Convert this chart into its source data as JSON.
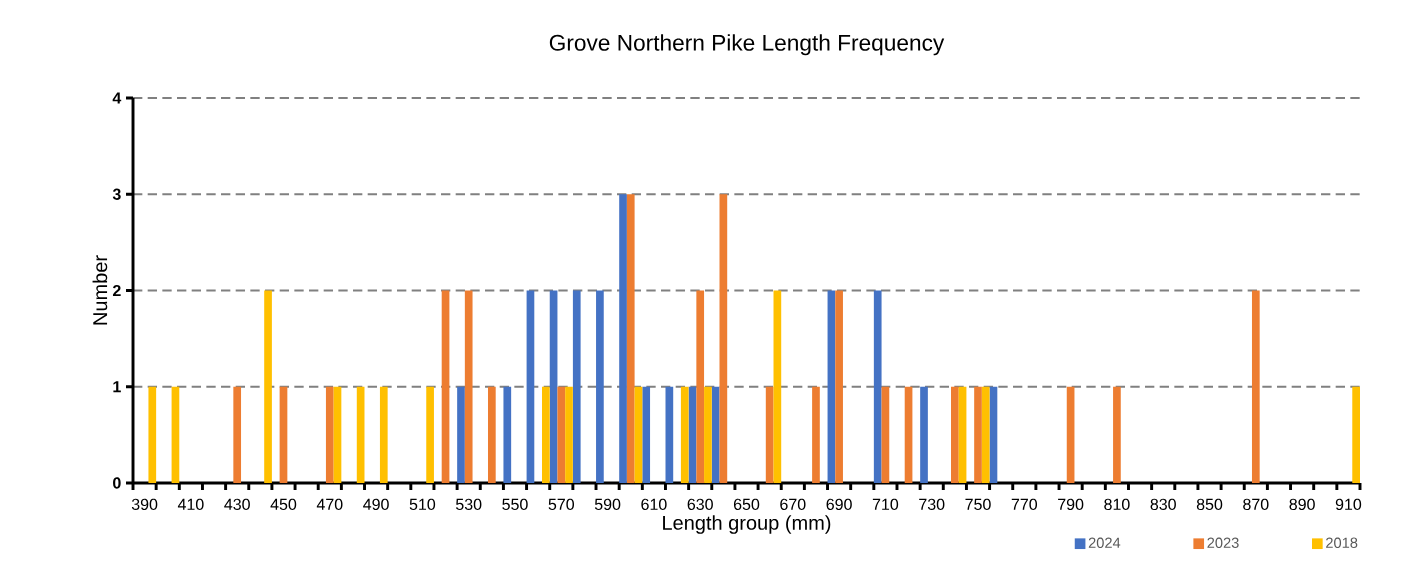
{
  "chart_data": {
    "type": "bar",
    "title": "Grove Northern Pike Length Frequency",
    "xlabel": "Length group (mm)",
    "ylabel": "Number",
    "categories": [
      "390",
      null,
      "410",
      null,
      "430",
      null,
      "450",
      null,
      "470",
      null,
      "490",
      null,
      "510",
      null,
      "530",
      null,
      "550",
      null,
      "570",
      null,
      "590",
      null,
      "610",
      null,
      "630",
      null,
      "650",
      null,
      "670",
      null,
      "690",
      null,
      "710",
      null,
      "730",
      null,
      "750",
      null,
      "770",
      null,
      "790",
      null,
      "810",
      null,
      "830",
      null,
      "850",
      null,
      "870",
      null,
      "890",
      null,
      "910"
    ],
    "series": [
      {
        "name": "2024",
        "color": "#4472c4",
        "values": [
          0,
          0,
          0,
          0,
          0,
          0,
          0,
          0,
          0,
          0,
          0,
          0,
          0,
          0,
          1,
          0,
          1,
          2,
          2,
          2,
          2,
          3,
          1,
          1,
          1,
          1,
          0,
          0,
          0,
          0,
          2,
          0,
          2,
          0,
          1,
          0,
          0,
          1,
          0,
          0,
          0,
          0,
          0,
          0,
          0,
          0,
          0,
          0,
          0,
          0,
          0,
          0,
          0
        ]
      },
      {
        "name": "2023",
        "color": "#ed7d31",
        "values": [
          0,
          0,
          0,
          0,
          1,
          0,
          1,
          0,
          1,
          0,
          0,
          0,
          0,
          2,
          2,
          1,
          0,
          0,
          1,
          0,
          0,
          3,
          0,
          0,
          2,
          3,
          0,
          1,
          0,
          1,
          2,
          0,
          1,
          1,
          0,
          1,
          1,
          0,
          0,
          0,
          1,
          0,
          1,
          0,
          0,
          0,
          0,
          0,
          2,
          0,
          0,
          0,
          0
        ]
      },
      {
        "name": "2018",
        "color": "#ffc000",
        "values": [
          1,
          1,
          0,
          0,
          0,
          2,
          0,
          0,
          1,
          1,
          1,
          0,
          1,
          0,
          0,
          0,
          0,
          1,
          1,
          0,
          0,
          1,
          0,
          1,
          1,
          0,
          0,
          2,
          0,
          0,
          0,
          0,
          0,
          0,
          0,
          1,
          1,
          0,
          0,
          0,
          0,
          0,
          0,
          0,
          0,
          0,
          0,
          0,
          0,
          0,
          0,
          0,
          1
        ]
      }
    ],
    "ylim": [
      0,
      4
    ],
    "yticks": [
      0,
      1,
      2,
      3,
      4
    ],
    "grid": "y",
    "legend": "bottom right"
  }
}
